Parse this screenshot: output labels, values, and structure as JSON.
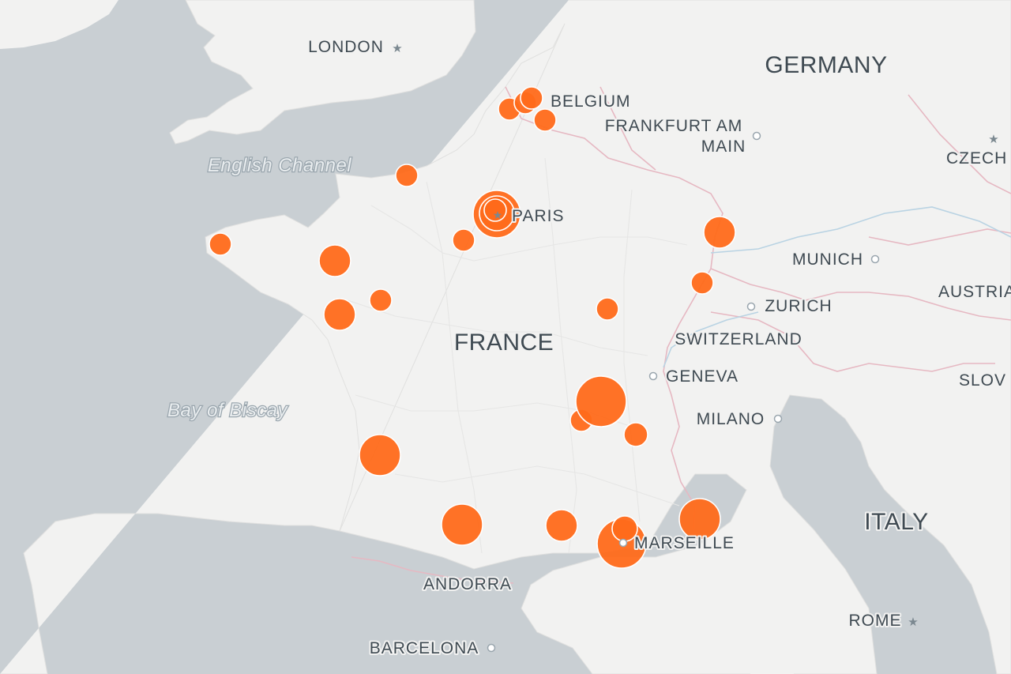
{
  "countries": [
    {
      "id": "germany",
      "name": "GERMANY"
    },
    {
      "id": "belgium",
      "name": "BELGIUM"
    },
    {
      "id": "france",
      "name": "FRANCE"
    },
    {
      "id": "switzerland",
      "name": "SWITZERLAND"
    },
    {
      "id": "italy",
      "name": "ITALY"
    },
    {
      "id": "andorra",
      "name": "ANDORRA"
    },
    {
      "id": "austria",
      "name": "AUSTRIA"
    },
    {
      "id": "czech",
      "name": "CZECH"
    },
    {
      "id": "slovenia",
      "name": "SLOV"
    }
  ],
  "cities": [
    {
      "id": "london",
      "name": "LONDON",
      "marker": "star"
    },
    {
      "id": "paris",
      "name": "PARIS",
      "marker": "star"
    },
    {
      "id": "frankfurt-1",
      "name": "FRANKFURT AM",
      "marker": "dot"
    },
    {
      "id": "frankfurt-2",
      "name": "MAIN",
      "marker": "none"
    },
    {
      "id": "munich",
      "name": "MUNICH",
      "marker": "dot"
    },
    {
      "id": "zurich",
      "name": "ZURICH",
      "marker": "dot"
    },
    {
      "id": "geneva",
      "name": "GENEVA",
      "marker": "dot"
    },
    {
      "id": "milano",
      "name": "MILANO",
      "marker": "dot"
    },
    {
      "id": "marseille",
      "name": "MARSEILLE",
      "marker": "dot"
    },
    {
      "id": "barcelona",
      "name": "BARCELONA",
      "marker": "dot"
    },
    {
      "id": "rome",
      "name": "ROME",
      "marker": "star"
    }
  ],
  "water": [
    {
      "id": "english-channel",
      "name": "English Channel"
    },
    {
      "id": "bay-of-biscay",
      "name": "Bay of Biscay"
    }
  ],
  "colors": {
    "sea": "#c9cfd3",
    "land": "#f2f2f1",
    "border": "#e6b8c2",
    "river": "#b9d3e3",
    "marker": "#ff6a1a"
  }
}
